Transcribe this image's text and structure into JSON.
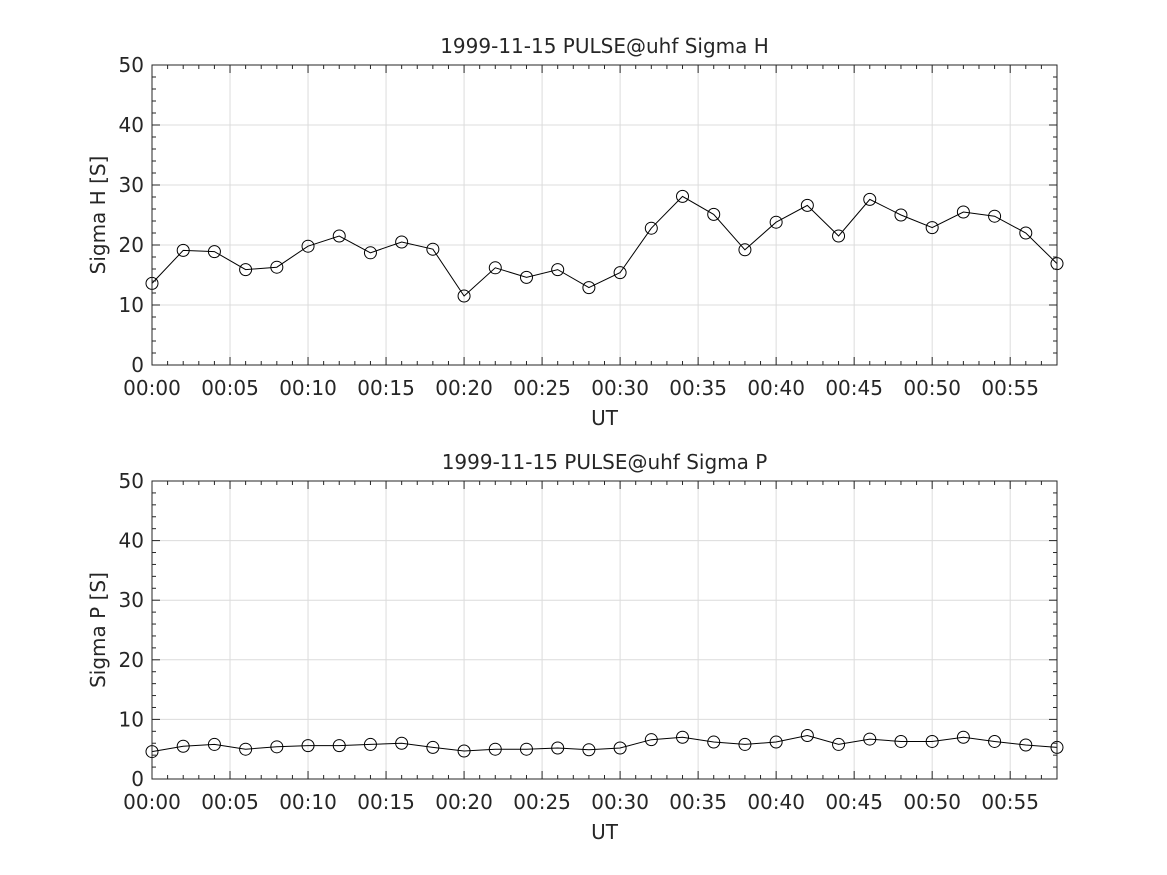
{
  "chart_data": [
    {
      "type": "line",
      "title": "1999-11-15  PULSE@uhf Sigma H",
      "xlabel": "UT",
      "ylabel": "Sigma H [S]",
      "xlim": [
        "00:00",
        "00:58"
      ],
      "ylim": [
        0,
        50
      ],
      "xticks": [
        "00:00",
        "00:05",
        "00:10",
        "00:15",
        "00:20",
        "00:25",
        "00:30",
        "00:35",
        "00:40",
        "00:45",
        "00:50",
        "00:55"
      ],
      "yticks": [
        "0",
        "10",
        "20",
        "30",
        "40",
        "50"
      ],
      "grid": true,
      "marker": "circle",
      "line_color": "#000000",
      "x": [
        "00:00",
        "00:02",
        "00:04",
        "00:06",
        "00:08",
        "00:10",
        "00:12",
        "00:14",
        "00:16",
        "00:18",
        "00:20",
        "00:22",
        "00:24",
        "00:26",
        "00:28",
        "00:30",
        "00:32",
        "00:34",
        "00:36",
        "00:38",
        "00:40",
        "00:42",
        "00:44",
        "00:46",
        "00:48",
        "00:50",
        "00:52",
        "00:54",
        "00:56",
        "00:58"
      ],
      "values": [
        13.6,
        19.1,
        18.9,
        15.9,
        16.3,
        19.8,
        21.5,
        18.7,
        20.5,
        19.3,
        11.5,
        16.2,
        14.6,
        15.9,
        12.9,
        15.4,
        22.8,
        28.1,
        25.1,
        19.2,
        23.8,
        26.6,
        21.5,
        27.6,
        25.0,
        22.9,
        25.5,
        24.8,
        22.0,
        16.9
      ]
    },
    {
      "type": "line",
      "title": "1999-11-15  PULSE@uhf Sigma P",
      "xlabel": "UT",
      "ylabel": "Sigma P [S]",
      "xlim": [
        "00:00",
        "00:58"
      ],
      "ylim": [
        0,
        50
      ],
      "xticks": [
        "00:00",
        "00:05",
        "00:10",
        "00:15",
        "00:20",
        "00:25",
        "00:30",
        "00:35",
        "00:40",
        "00:45",
        "00:50",
        "00:55"
      ],
      "yticks": [
        "0",
        "10",
        "20",
        "30",
        "40",
        "50"
      ],
      "grid": true,
      "marker": "circle",
      "line_color": "#000000",
      "x": [
        "00:00",
        "00:02",
        "00:04",
        "00:06",
        "00:08",
        "00:10",
        "00:12",
        "00:14",
        "00:16",
        "00:18",
        "00:20",
        "00:22",
        "00:24",
        "00:26",
        "00:28",
        "00:30",
        "00:32",
        "00:34",
        "00:36",
        "00:38",
        "00:40",
        "00:42",
        "00:44",
        "00:46",
        "00:48",
        "00:50",
        "00:52",
        "00:54",
        "00:56",
        "00:58"
      ],
      "values": [
        4.6,
        5.5,
        5.8,
        5.0,
        5.4,
        5.6,
        5.6,
        5.8,
        6.0,
        5.3,
        4.7,
        5.0,
        5.0,
        5.2,
        4.9,
        5.2,
        6.6,
        7.0,
        6.2,
        5.8,
        6.2,
        7.3,
        5.8,
        6.7,
        6.3,
        6.3,
        7.0,
        6.3,
        5.7,
        5.3
      ]
    }
  ]
}
